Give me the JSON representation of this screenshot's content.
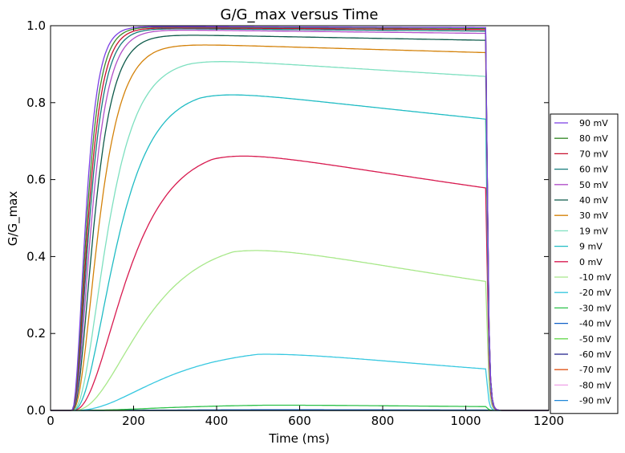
{
  "chart_data": {
    "type": "line",
    "title": "G/G_max versus Time",
    "xlabel": "Time (ms)",
    "ylabel": "G/G_max",
    "xlim": [
      0,
      1200
    ],
    "ylim": [
      0,
      1.0
    ],
    "x_ticks": [
      "0",
      "200",
      "400",
      "600",
      "800",
      "1000",
      "1200"
    ],
    "y_ticks": [
      "0.0",
      "0.2",
      "0.4",
      "0.6",
      "0.8",
      "1.0"
    ],
    "grid": false,
    "legend_position": "lower-right outside",
    "pulse": {
      "onset_ms": 50,
      "end_ms": 1050
    },
    "series": [
      {
        "name": "90 mV",
        "color": "#7b3fe4",
        "rise_tau": 22,
        "peak": 0.998,
        "peak_t": 200,
        "end_value": 0.995
      },
      {
        "name": "80 mV",
        "color": "#3a8c2b",
        "rise_tau": 24,
        "peak": 0.997,
        "peak_t": 200,
        "end_value": 0.993
      },
      {
        "name": "70 mV",
        "color": "#c8102e",
        "rise_tau": 26,
        "peak": 0.995,
        "peak_t": 210,
        "end_value": 0.99
      },
      {
        "name": "60 mV",
        "color": "#147a7a",
        "rise_tau": 28,
        "peak": 0.993,
        "peak_t": 210,
        "end_value": 0.986
      },
      {
        "name": "50 mV",
        "color": "#b04fc8",
        "rise_tau": 31,
        "peak": 0.99,
        "peak_t": 220,
        "end_value": 0.98
      },
      {
        "name": "40 mV",
        "color": "#0d5a4a",
        "rise_tau": 35,
        "peak": 0.978,
        "peak_t": 230,
        "end_value": 0.962
      },
      {
        "name": "30 mV",
        "color": "#d4820a",
        "rise_tau": 42,
        "peak": 0.955,
        "peak_t": 250,
        "end_value": 0.93
      },
      {
        "name": "19 mV",
        "color": "#7ee0c0",
        "rise_tau": 55,
        "peak": 0.916,
        "peak_t": 330,
        "end_value": 0.868
      },
      {
        "name": "9 mV",
        "color": "#20bcc4",
        "rise_tau": 68,
        "peak": 0.838,
        "peak_t": 360,
        "end_value": 0.757
      },
      {
        "name": "0 mV",
        "color": "#d81b50",
        "rise_tau": 85,
        "peak": 0.69,
        "peak_t": 390,
        "end_value": 0.578
      },
      {
        "name": "-10 mV",
        "color": "#a8e88a",
        "rise_tau": 110,
        "peak": 0.45,
        "peak_t": 440,
        "end_value": 0.335
      },
      {
        "name": "-20 mV",
        "color": "#38c8e0",
        "rise_tau": 140,
        "peak": 0.165,
        "peak_t": 500,
        "end_value": 0.108
      },
      {
        "name": "-30 mV",
        "color": "#2cc24a",
        "rise_tau": 160,
        "peak": 0.016,
        "peak_t": 520,
        "end_value": 0.01
      },
      {
        "name": "-40 mV",
        "color": "#1060c8",
        "rise_tau": 170,
        "peak": 0.002,
        "peak_t": 540,
        "end_value": 0.001
      },
      {
        "name": "-50 mV",
        "color": "#6ad850",
        "rise_tau": 170,
        "peak": 0.0,
        "peak_t": 540,
        "end_value": 0.0
      },
      {
        "name": "-60 mV",
        "color": "#1e1e8a",
        "rise_tau": 170,
        "peak": 0.0,
        "peak_t": 540,
        "end_value": 0.0
      },
      {
        "name": "-70 mV",
        "color": "#e0551a",
        "rise_tau": 170,
        "peak": 0.0,
        "peak_t": 540,
        "end_value": 0.0
      },
      {
        "name": "-80 mV",
        "color": "#f0a0e8",
        "rise_tau": 170,
        "peak": 0.0,
        "peak_t": 540,
        "end_value": 0.0
      },
      {
        "name": "-90 mV",
        "color": "#2088d8",
        "rise_tau": 170,
        "peak": 0.0,
        "peak_t": 540,
        "end_value": 0.0
      }
    ]
  }
}
